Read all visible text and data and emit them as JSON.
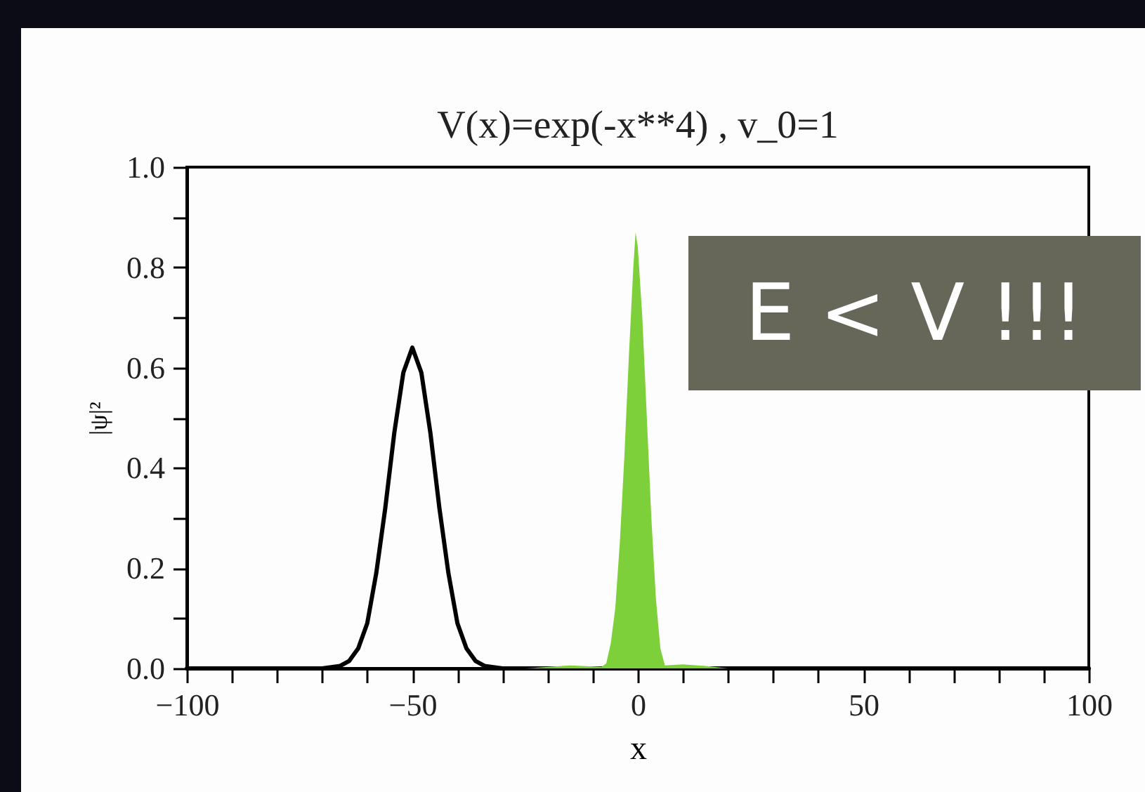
{
  "chart_data": {
    "type": "line",
    "title": "V(x)=exp(-x**4) , v_0=1",
    "xlabel": "x",
    "ylabel": "|ψ|²",
    "annotations": [
      "E < V !!!"
    ],
    "xlim": [
      -100,
      100
    ],
    "ylim": [
      0,
      1
    ],
    "xticks": [
      {
        "value": -100,
        "label": "−100"
      },
      {
        "value": -90,
        "label": null
      },
      {
        "value": -80,
        "label": null
      },
      {
        "value": -70,
        "label": null
      },
      {
        "value": -60,
        "label": null
      },
      {
        "value": -50,
        "label": "−50"
      },
      {
        "value": -40,
        "label": null
      },
      {
        "value": -30,
        "label": null
      },
      {
        "value": -20,
        "label": null
      },
      {
        "value": -10,
        "label": null
      },
      0,
      {
        "value": 10,
        "label": null
      },
      {
        "value": 20,
        "label": null
      },
      {
        "value": 30,
        "label": null
      },
      {
        "value": 40,
        "label": null
      },
      50,
      {
        "value": 60,
        "label": null
      },
      {
        "value": 70,
        "label": null
      },
      {
        "value": 80,
        "label": null
      },
      {
        "value": 90,
        "label": null
      },
      100
    ],
    "yticks": [
      {
        "value": 0,
        "label": "0.0"
      },
      {
        "value": 0.1,
        "label": null
      },
      {
        "value": 0.2,
        "label": "0.2"
      },
      {
        "value": 0.3,
        "label": null
      },
      {
        "value": 0.4,
        "label": "0.4"
      },
      {
        "value": 0.5,
        "label": null
      },
      {
        "value": 0.6,
        "label": "0.6"
      },
      {
        "value": 0.7,
        "label": null
      },
      {
        "value": 0.8,
        "label": "0.8"
      },
      {
        "value": 0.9,
        "label": null
      },
      {
        "value": 1,
        "label": "1.0"
      }
    ],
    "series": [
      {
        "type": "line",
        "color": "#000000",
        "x": [
          -100,
          -70,
          -66,
          -64,
          -62,
          -60,
          -58,
          -56,
          -54,
          -52,
          -50,
          -48,
          -46,
          -44,
          -42,
          -40,
          -38,
          -36,
          -34,
          -30,
          100
        ],
        "values": [
          0,
          0,
          0.005,
          0.015,
          0.04,
          0.09,
          0.19,
          0.32,
          0.47,
          0.59,
          0.64,
          0.59,
          0.47,
          0.32,
          0.19,
          0.09,
          0.04,
          0.015,
          0.005,
          0,
          0
        ]
      },
      {
        "type": "area",
        "color": "#7ed03a",
        "x": [
          -25,
          -15,
          -8,
          -7,
          -6,
          -5,
          -4,
          -3,
          -2,
          -1,
          -0.5,
          0,
          1,
          2,
          3,
          4,
          5,
          6,
          10,
          15,
          20
        ],
        "values": [
          0,
          0.006,
          0.003,
          0.01,
          0.05,
          0.12,
          0.25,
          0.42,
          0.62,
          0.8,
          0.87,
          0.84,
          0.7,
          0.5,
          0.3,
          0.14,
          0.04,
          0.006,
          0.008,
          0.005,
          0
        ]
      }
    ]
  }
}
